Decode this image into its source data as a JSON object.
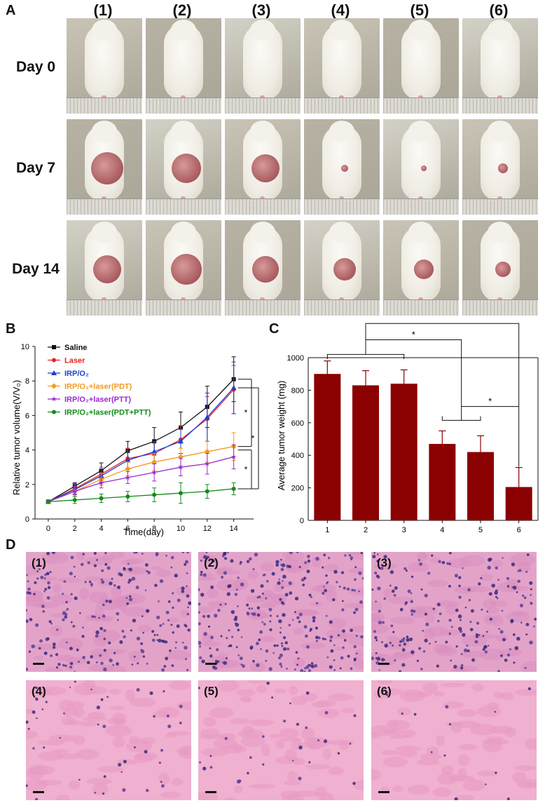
{
  "panels": {
    "a": "A",
    "b": "B",
    "c": "C",
    "d": "D"
  },
  "panel_a": {
    "columns": [
      "(1)",
      "(2)",
      "(3)",
      "(4)",
      "(5)",
      "(6)"
    ],
    "rows": [
      "Day 0",
      "Day 7",
      "Day 14"
    ]
  },
  "panel_d": {
    "labels": [
      "(1)",
      "(2)",
      "(3)",
      "(4)",
      "(5)",
      "(6)"
    ]
  },
  "chart_data": [
    {
      "type": "line",
      "xlabel": "Time(day)",
      "ylabel": "Relative tumor volume(V/V₀)",
      "xlim": [
        -1,
        15.5
      ],
      "ylim": [
        0,
        10
      ],
      "xticks": [
        "0",
        "2",
        "4",
        "6",
        "8",
        "10",
        "12",
        "14"
      ],
      "yticks": [
        "0",
        "2",
        "4",
        "6",
        "8",
        "10"
      ],
      "x": [
        0,
        2,
        4,
        6,
        8,
        10,
        12,
        14
      ],
      "legend_position": "top-left",
      "series": [
        {
          "name": "Saline",
          "color": "#111111",
          "marker": "square",
          "values": [
            1.0,
            1.9,
            2.8,
            3.95,
            4.5,
            5.3,
            6.5,
            8.1
          ],
          "errors": [
            0.1,
            0.2,
            0.45,
            0.55,
            0.8,
            0.9,
            1.2,
            1.3
          ]
        },
        {
          "name": "Laser",
          "color": "#e8231f",
          "marker": "circle",
          "values": [
            1.0,
            1.75,
            2.6,
            3.5,
            3.8,
            4.6,
            5.8,
            7.5
          ],
          "errors": [
            0.1,
            0.3,
            0.4,
            0.6,
            0.6,
            0.8,
            1.3,
            1.4
          ]
        },
        {
          "name": "IRP/O₂",
          "color": "#1c3fd1",
          "marker": "triangle",
          "values": [
            1.0,
            1.7,
            2.5,
            3.4,
            3.9,
            4.5,
            5.9,
            7.6
          ],
          "errors": [
            0.1,
            0.3,
            0.4,
            0.5,
            0.6,
            0.7,
            1.4,
            1.5
          ]
        },
        {
          "name": "IRP/O₂+laser(PDT)",
          "color": "#f39a1e",
          "marker": "diamond",
          "values": [
            1.0,
            1.6,
            2.3,
            2.9,
            3.3,
            3.6,
            3.9,
            4.2
          ],
          "errors": [
            0.1,
            0.3,
            0.35,
            0.4,
            0.5,
            0.5,
            0.6,
            0.8
          ]
        },
        {
          "name": "IRP/O₂+laser(PTT)",
          "color": "#9a2bd0",
          "marker": "star",
          "values": [
            1.0,
            1.6,
            2.1,
            2.4,
            2.7,
            3.0,
            3.2,
            3.6
          ],
          "errors": [
            0.1,
            0.3,
            0.3,
            0.35,
            0.5,
            0.5,
            0.6,
            0.7
          ]
        },
        {
          "name": "IRP/O₂+laser(PDT+PTT)",
          "color": "#138a1b",
          "marker": "circle",
          "values": [
            1.0,
            1.1,
            1.2,
            1.3,
            1.4,
            1.5,
            1.6,
            1.75
          ],
          "errors": [
            0.1,
            0.2,
            0.25,
            0.3,
            0.4,
            0.6,
            0.4,
            0.35
          ]
        }
      ],
      "significance": [
        "*",
        "*",
        "*"
      ]
    },
    {
      "type": "bar",
      "xlabel": "",
      "ylabel": "Average tumor weight (mg)",
      "categories": [
        "1",
        "2",
        "3",
        "4",
        "5",
        "6"
      ],
      "values": [
        900,
        830,
        840,
        470,
        420,
        205
      ],
      "errors": [
        80,
        90,
        85,
        80,
        100,
        120
      ],
      "ylim": [
        0,
        1000
      ],
      "yticks": [
        "0",
        "200",
        "400",
        "600",
        "800",
        "1000"
      ],
      "bar_color": "#8b0000",
      "significance": [
        "*",
        "*",
        "*"
      ]
    }
  ]
}
